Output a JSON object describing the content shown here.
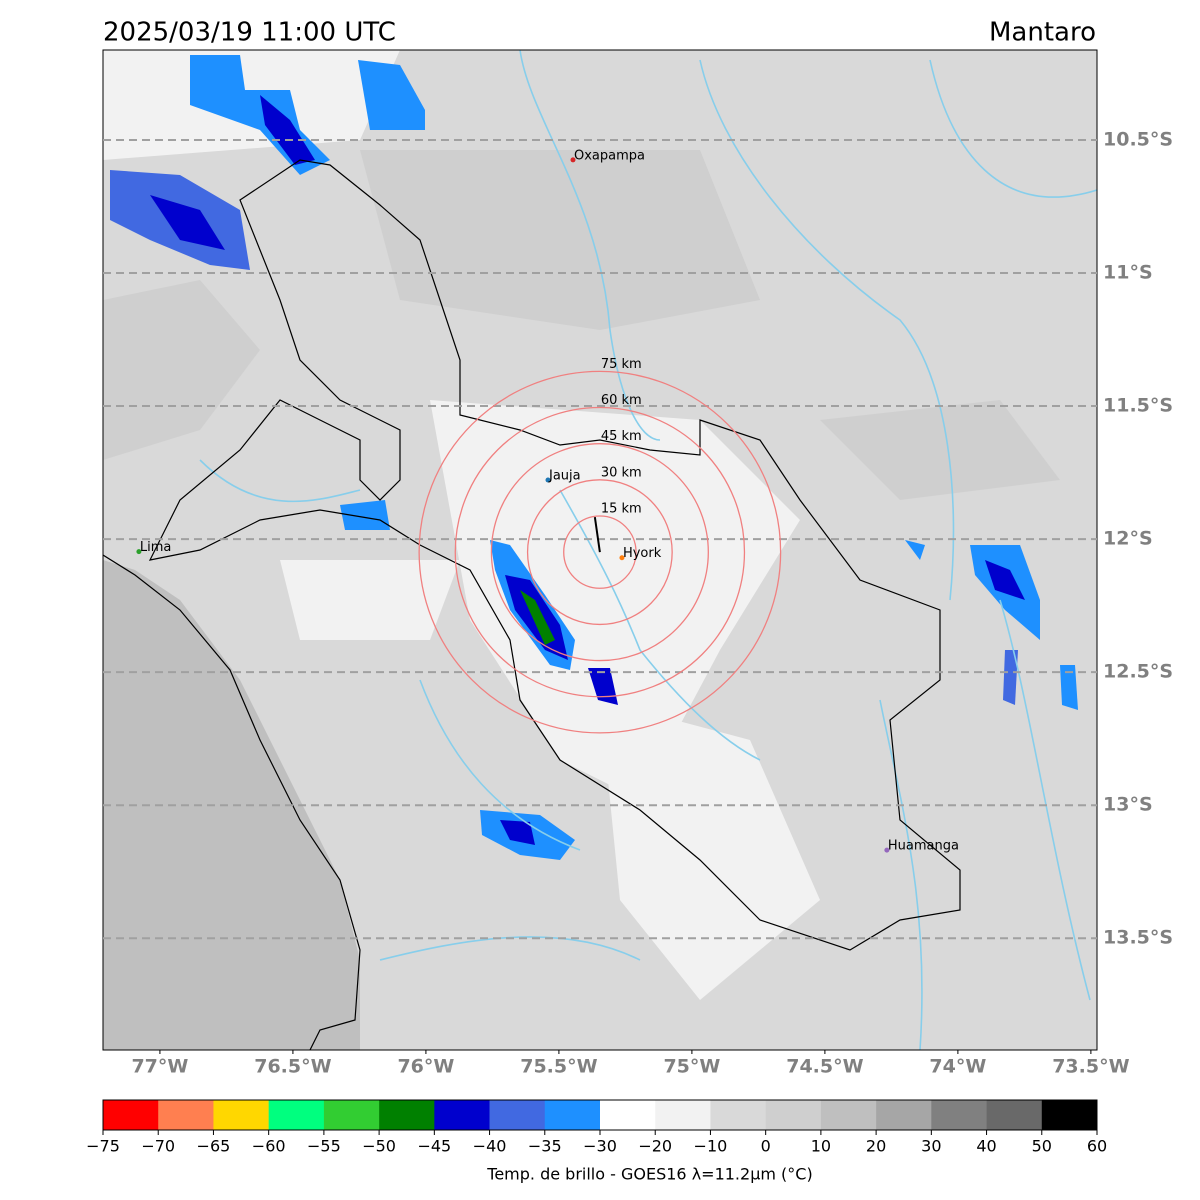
{
  "map": {
    "title": "2025/03/19 11:00 UTC",
    "region": "Mantaro",
    "lonlim": [
      -77.214,
      -73.477
    ],
    "latlim": [
      -13.92,
      -10.162
    ],
    "lat_ticks": [
      {
        "value": -10.5,
        "label": "10.5°S"
      },
      {
        "value": -11,
        "label": "11°S"
      },
      {
        "value": -11.5,
        "label": "11.5°S"
      },
      {
        "value": -12,
        "label": "12°S"
      },
      {
        "value": -12.5,
        "label": "12.5°S"
      },
      {
        "value": -13,
        "label": "13°S"
      },
      {
        "value": -13.5,
        "label": "13.5°S"
      }
    ],
    "lon_ticks": [
      {
        "value": -77,
        "label": "77°W"
      },
      {
        "value": -76.5,
        "label": "76.5°W"
      },
      {
        "value": -76,
        "label": "76°W"
      },
      {
        "value": -75.5,
        "label": "75.5°W"
      },
      {
        "value": -75,
        "label": "75°W"
      },
      {
        "value": -74.5,
        "label": "74.5°W"
      },
      {
        "value": -74,
        "label": "74°W"
      },
      {
        "value": -73.5,
        "label": "73.5°W"
      }
    ],
    "cities": [
      {
        "name": "Oxapampa",
        "lon": -75.447,
        "lat": -10.575,
        "color": "#d62728"
      },
      {
        "name": "Jauja",
        "lon": -75.541,
        "lat": -11.778,
        "color": "#1f77b4"
      },
      {
        "name": "Hyork",
        "lon": -75.263,
        "lat": -12.07,
        "color": "#ff7f0e"
      },
      {
        "name": "Lima",
        "lon": -77.079,
        "lat": -12.047,
        "color": "#2ca02c"
      },
      {
        "name": "Huamanga",
        "lon": -74.267,
        "lat": -13.169,
        "color": "#9467bd"
      }
    ],
    "rings_center": {
      "lon": -75.346,
      "lat": -12.049
    },
    "rings": [
      {
        "value": 15,
        "label": "15 km"
      },
      {
        "value": 30,
        "label": "30 km"
      },
      {
        "value": 45,
        "label": "45 km"
      },
      {
        "value": 60,
        "label": "60 km"
      },
      {
        "value": 75,
        "label": "75 km"
      }
    ],
    "colorbar": {
      "label": "Temp. de brillo - GOES16 λ=11.2μm (°C)",
      "ticks": [
        {
          "value": -75,
          "label": "−75"
        },
        {
          "value": -70,
          "label": "−70"
        },
        {
          "value": -65,
          "label": "−65"
        },
        {
          "value": -60,
          "label": "−60"
        },
        {
          "value": -55,
          "label": "−55"
        },
        {
          "value": -50,
          "label": "−50"
        },
        {
          "value": -45,
          "label": "−45"
        },
        {
          "value": -40,
          "label": "−40"
        },
        {
          "value": -35,
          "label": "−35"
        },
        {
          "value": -30,
          "label": "−30"
        },
        {
          "value": -20,
          "label": "−20"
        },
        {
          "value": -10,
          "label": "−10"
        },
        0,
        10,
        20,
        30,
        40,
        50,
        60
      ],
      "colors": [
        "#ff0000",
        "#ff7f50",
        "#ffd700",
        "#00ff7f",
        "#32cd32",
        "#008000",
        "#0000cd",
        "#4169e1",
        "#1e90ff",
        "#ffffff",
        "#f2f2f2",
        "#d9d9d9",
        "#cfcfcf",
        "#bfbfbf",
        "#a6a6a6",
        "#808080",
        "#696969",
        "#000000"
      ]
    }
  }
}
